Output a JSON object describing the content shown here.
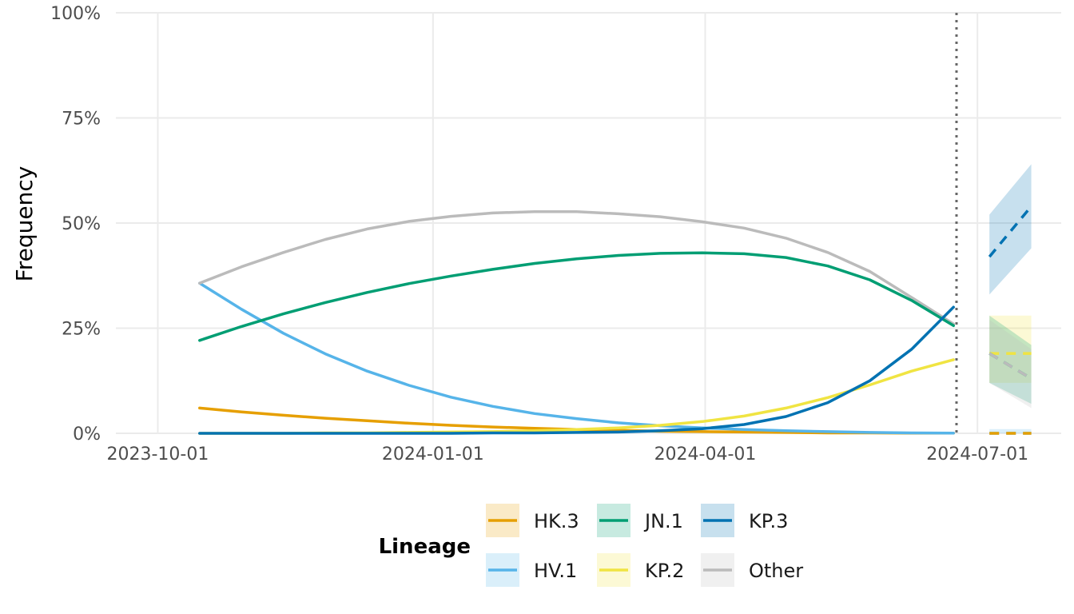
{
  "chart_data": {
    "type": "line",
    "title": "",
    "xlabel": "",
    "ylabel": "Frequency",
    "x_ticks": [
      "2023-10-01",
      "2024-01-01",
      "2024-04-01",
      "2024-07-01"
    ],
    "y_ticks": [
      "0%",
      "25%",
      "50%",
      "75%",
      "100%"
    ],
    "xlim": [
      "2023-09-17",
      "2024-07-29"
    ],
    "ylim": [
      0,
      1
    ],
    "grid": true,
    "nowcast_date": "2024-06-24",
    "legend": {
      "title": "Lineage",
      "placement": "bottom",
      "entries": [
        "HK.3",
        "JN.1",
        "KP.3",
        "HV.1",
        "KP.2",
        "Other"
      ]
    },
    "x": [
      "2023-10-15",
      "2023-10-29",
      "2023-11-12",
      "2023-11-26",
      "2023-12-10",
      "2023-12-24",
      "2024-01-07",
      "2024-01-21",
      "2024-02-04",
      "2024-02-18",
      "2024-03-03",
      "2024-03-17",
      "2024-03-31",
      "2024-04-14",
      "2024-04-28",
      "2024-05-12",
      "2024-05-26",
      "2024-06-09",
      "2024-06-23"
    ],
    "series": [
      {
        "name": "HK.3",
        "color": "#E69F00",
        "values": [
          0.06,
          0.051,
          0.043,
          0.036,
          0.03,
          0.024,
          0.019,
          0.015,
          0.012,
          0.009,
          0.007,
          0.005,
          0.004,
          0.003,
          0.002,
          0.001,
          0.001,
          0.0005,
          0.0003
        ]
      },
      {
        "name": "HV.1",
        "color": "#56B4E9",
        "values": [
          0.357,
          0.295,
          0.238,
          0.189,
          0.148,
          0.114,
          0.086,
          0.064,
          0.047,
          0.035,
          0.025,
          0.018,
          0.013,
          0.009,
          0.006,
          0.004,
          0.002,
          0.001,
          0.0005
        ]
      },
      {
        "name": "JN.1",
        "color": "#009E73",
        "values": [
          0.221,
          0.254,
          0.284,
          0.311,
          0.335,
          0.356,
          0.374,
          0.39,
          0.404,
          0.415,
          0.423,
          0.428,
          0.429,
          0.427,
          0.418,
          0.398,
          0.365,
          0.316,
          0.256
        ]
      },
      {
        "name": "KP.2",
        "color": "#F0E442",
        "values": [
          0.0,
          0.0,
          0.0,
          0.001,
          0.001,
          0.002,
          0.003,
          0.004,
          0.006,
          0.009,
          0.013,
          0.019,
          0.028,
          0.041,
          0.06,
          0.085,
          0.115,
          0.148,
          0.175
        ]
      },
      {
        "name": "KP.3",
        "color": "#0072B2",
        "values": [
          0.0,
          0.0,
          0.0,
          0.0,
          0.0,
          0.0,
          0.0,
          0.001,
          0.001,
          0.002,
          0.003,
          0.006,
          0.011,
          0.021,
          0.04,
          0.073,
          0.125,
          0.2,
          0.3
        ]
      },
      {
        "name": "Other",
        "color": "#BBBBBB",
        "values": [
          0.357,
          0.396,
          0.43,
          0.461,
          0.486,
          0.504,
          0.516,
          0.524,
          0.527,
          0.527,
          0.522,
          0.515,
          0.503,
          0.488,
          0.464,
          0.43,
          0.385,
          0.323,
          0.26
        ]
      }
    ],
    "nowcast": [
      {
        "name": "KP.3",
        "color": "#0072B2",
        "x": [
          "2024-07-05",
          "2024-07-19"
        ],
        "values": [
          0.42,
          0.54
        ],
        "lower": [
          0.33,
          0.44
        ],
        "upper": [
          0.52,
          0.64
        ]
      },
      {
        "name": "KP.2",
        "color": "#F0E442",
        "x": [
          "2024-07-05",
          "2024-07-19"
        ],
        "values": [
          0.19,
          0.19
        ],
        "lower": [
          0.12,
          0.12
        ],
        "upper": [
          0.28,
          0.28
        ]
      },
      {
        "name": "JN.1",
        "color": "#009E73",
        "x": [
          "2024-07-05",
          "2024-07-19"
        ],
        "values": [
          0.19,
          0.13
        ],
        "lower": [
          0.12,
          0.07
        ],
        "upper": [
          0.28,
          0.21
        ]
      },
      {
        "name": "Other",
        "color": "#BBBBBB",
        "x": [
          "2024-07-05",
          "2024-07-19"
        ],
        "values": [
          0.19,
          0.13
        ],
        "lower": [
          0.12,
          0.06
        ],
        "upper": [
          0.27,
          0.2
        ]
      },
      {
        "name": "HV.1",
        "color": "#56B4E9",
        "x": [
          "2024-07-05",
          "2024-07-19"
        ],
        "values": [
          0.0,
          0.0
        ],
        "lower": [
          0.0,
          0.0
        ],
        "upper": [
          0.01,
          0.01
        ]
      },
      {
        "name": "HK.3",
        "color": "#E69F00",
        "x": [
          "2024-07-05",
          "2024-07-19"
        ],
        "values": [
          0.0,
          0.0
        ],
        "lower": [
          0.0,
          0.0
        ],
        "upper": [
          0.0,
          0.0
        ]
      }
    ]
  }
}
